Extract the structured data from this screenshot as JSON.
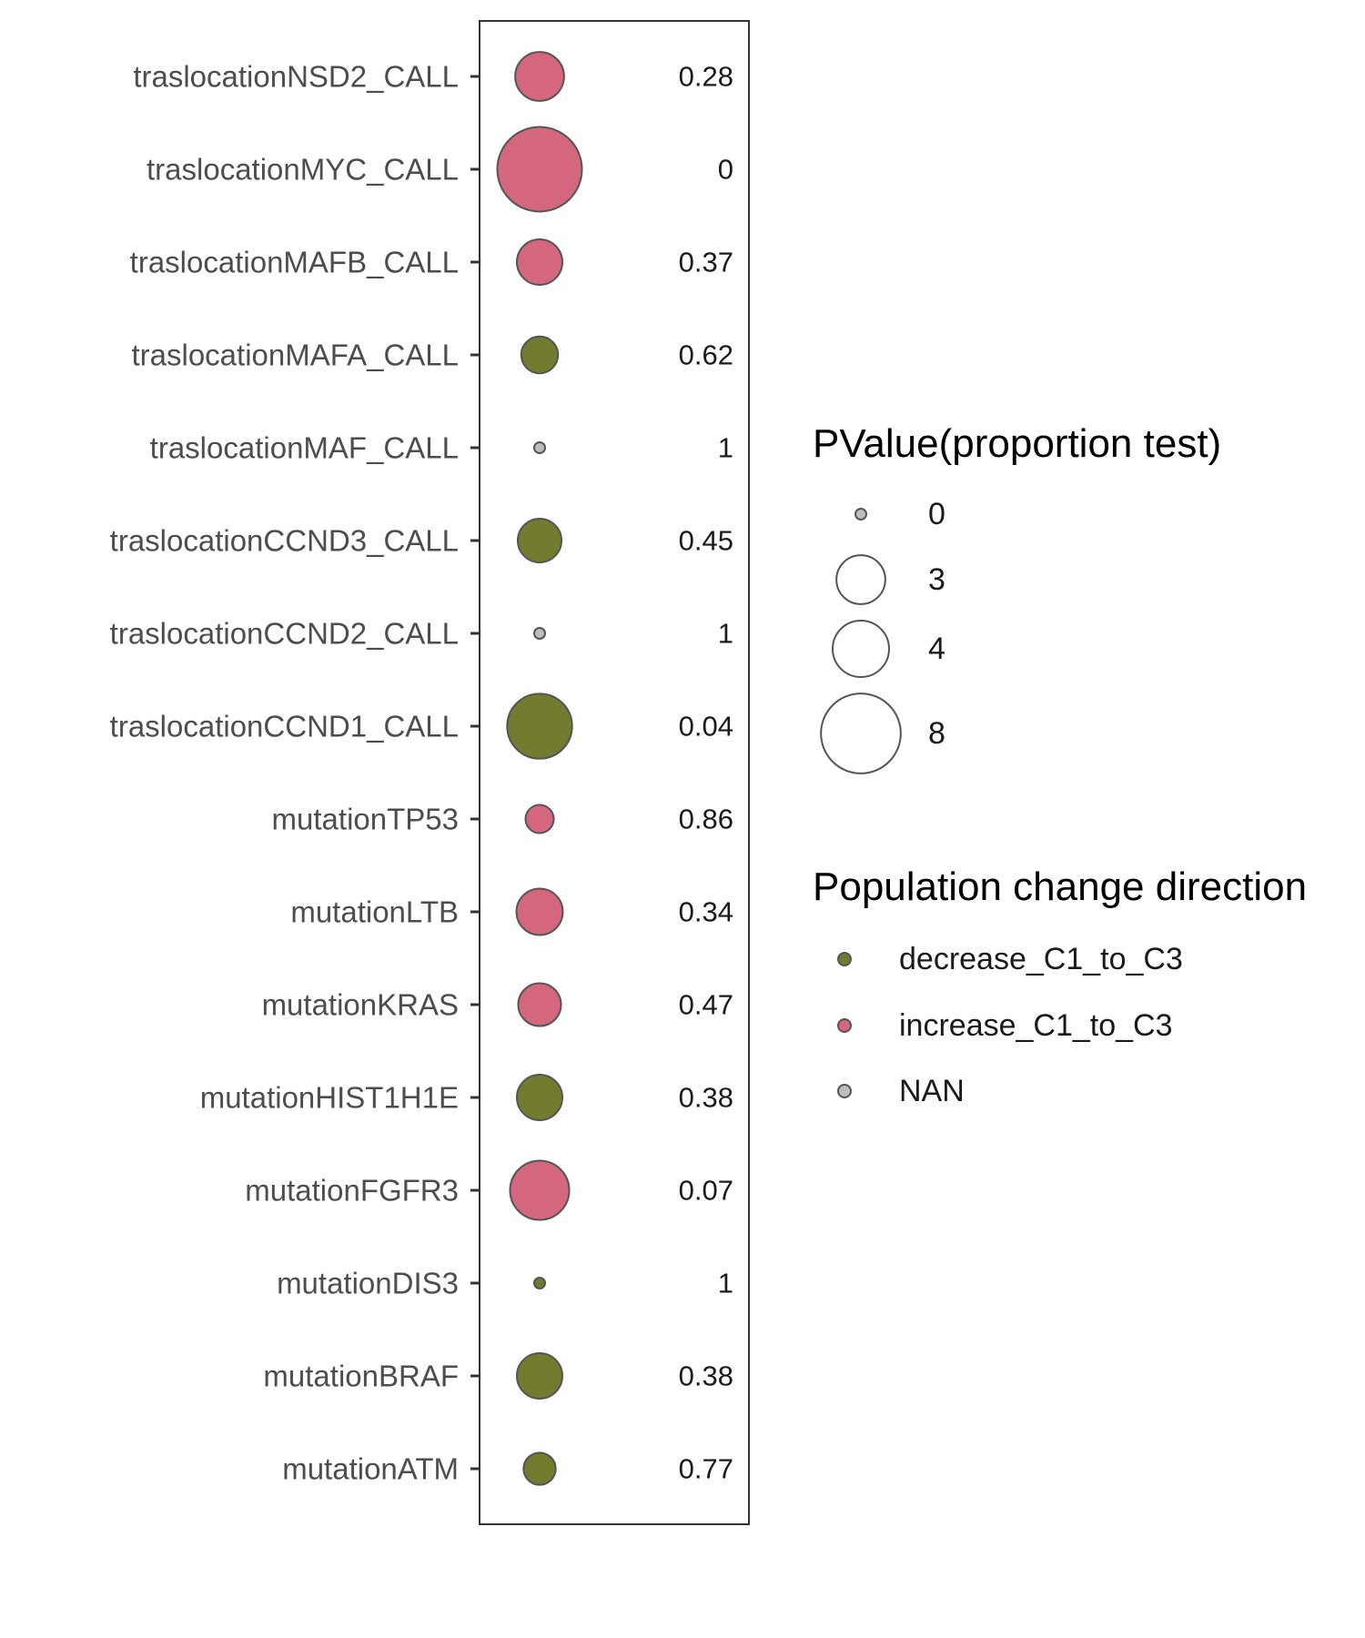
{
  "chart_data": {
    "type": "scatter",
    "categories": [
      "traslocationNSD2_CALL",
      "traslocationMYC_CALL",
      "traslocationMAFB_CALL",
      "traslocationMAFA_CALL",
      "traslocationMAF_CALL",
      "traslocationCCND3_CALL",
      "traslocationCCND2_CALL",
      "traslocationCCND1_CALL",
      "mutationTP53",
      "mutationLTB",
      "mutationKRAS",
      "mutationHIST1H1E",
      "mutationFGFR3",
      "mutationDIS3",
      "mutationBRAF",
      "mutationATM"
    ],
    "points": [
      {
        "category": "traslocationNSD2_CALL",
        "size": 3.0,
        "direction": "increase_C1_to_C3",
        "pvalue": "0.28"
      },
      {
        "category": "traslocationMYC_CALL",
        "size": 9.0,
        "direction": "increase_C1_to_C3",
        "pvalue": "0"
      },
      {
        "category": "traslocationMAFB_CALL",
        "size": 2.6,
        "direction": "increase_C1_to_C3",
        "pvalue": "0.37"
      },
      {
        "category": "traslocationMAFA_CALL",
        "size": 1.7,
        "direction": "decrease_C1_to_C3",
        "pvalue": "0.62"
      },
      {
        "category": "traslocationMAF_CALL",
        "size": 0.15,
        "direction": "NAN",
        "pvalue": "1"
      },
      {
        "category": "traslocationCCND3_CALL",
        "size": 2.4,
        "direction": "decrease_C1_to_C3",
        "pvalue": "0.45"
      },
      {
        "category": "traslocationCCND2_CALL",
        "size": 0.15,
        "direction": "NAN",
        "pvalue": "1"
      },
      {
        "category": "traslocationCCND1_CALL",
        "size": 5.3,
        "direction": "decrease_C1_to_C3",
        "pvalue": "0.04"
      },
      {
        "category": "mutationTP53",
        "size": 1.0,
        "direction": "increase_C1_to_C3",
        "pvalue": "0.86"
      },
      {
        "category": "mutationLTB",
        "size": 2.7,
        "direction": "increase_C1_to_C3",
        "pvalue": "0.34"
      },
      {
        "category": "mutationKRAS",
        "size": 2.3,
        "direction": "increase_C1_to_C3",
        "pvalue": "0.47"
      },
      {
        "category": "mutationHIST1H1E",
        "size": 2.6,
        "direction": "decrease_C1_to_C3",
        "pvalue": "0.38"
      },
      {
        "category": "mutationFGFR3",
        "size": 4.4,
        "direction": "increase_C1_to_C3",
        "pvalue": "0.07"
      },
      {
        "category": "mutationDIS3",
        "size": 0.15,
        "direction": "decrease_C1_to_C3",
        "pvalue": "1"
      },
      {
        "category": "mutationBRAF",
        "size": 2.6,
        "direction": "decrease_C1_to_C3",
        "pvalue": "0.38"
      },
      {
        "category": "mutationATM",
        "size": 1.3,
        "direction": "decrease_C1_to_C3",
        "pvalue": "0.77"
      }
    ],
    "size_legend": {
      "title": "PValue(proportion test)",
      "entries": [
        {
          "label": "0",
          "value": 0.15
        },
        {
          "label": "3",
          "value": 3
        },
        {
          "label": "4",
          "value": 4
        },
        {
          "label": "8",
          "value": 8
        }
      ]
    },
    "color_legend": {
      "title": "Population change direction",
      "entries": [
        {
          "label": "decrease_C1_to_C3",
          "color": "#737b2f"
        },
        {
          "label": "increase_C1_to_C3",
          "color": "#d4667d"
        },
        {
          "label": "NAN",
          "color": "#bdbdbd"
        }
      ]
    },
    "grid": false,
    "legend_position": "right"
  }
}
